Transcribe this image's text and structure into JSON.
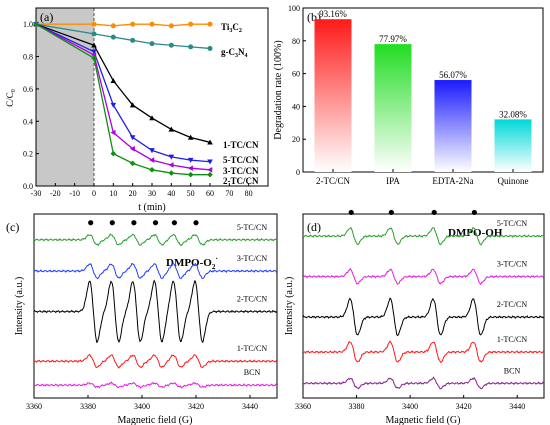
{
  "chart_data": [
    {
      "panel": "(a)",
      "type": "line",
      "xlabel": "t (min)",
      "ylabel": "C/C",
      "ylabel_sub": "0",
      "xlim": [
        -30,
        90
      ],
      "ylim": [
        0,
        1.1
      ],
      "xticks": [
        -30,
        -20,
        -10,
        0,
        10,
        20,
        30,
        40,
        50,
        60,
        70,
        80
      ],
      "yticks": [
        0.0,
        0.2,
        0.4,
        0.6,
        0.8,
        1.0
      ],
      "dark_region": [
        -30,
        0
      ],
      "series": [
        {
          "name": "Ti3C2",
          "label_main": "Ti",
          "label_s1": "3",
          "label_tail": "C",
          "label_s2": "2",
          "color": "#ff8c00",
          "marker": "circle",
          "x": [
            -30,
            0,
            10,
            20,
            30,
            40,
            50,
            60
          ],
          "y": [
            1.0,
            1.0,
            0.99,
            1.0,
            1.0,
            0.99,
            1.0,
            1.0
          ]
        },
        {
          "name": "g-C3N4",
          "label_main": "g-C",
          "label_s1": "3",
          "label_tail": "N",
          "label_s2": "4",
          "color": "#2a8a8a",
          "marker": "circle",
          "x": [
            -30,
            0,
            10,
            20,
            30,
            40,
            50,
            60
          ],
          "y": [
            1.0,
            0.94,
            0.92,
            0.9,
            0.88,
            0.87,
            0.86,
            0.85
          ]
        },
        {
          "name": "1-TC/CN",
          "color": "#000000",
          "marker": "triangle-up",
          "x": [
            -30,
            0,
            10,
            20,
            30,
            40,
            50,
            60
          ],
          "y": [
            1.0,
            0.87,
            0.65,
            0.5,
            0.42,
            0.35,
            0.3,
            0.27
          ]
        },
        {
          "name": "5-TC/CN",
          "color": "#1e1ee6",
          "marker": "triangle-down",
          "x": [
            -30,
            0,
            10,
            20,
            30,
            40,
            50,
            60
          ],
          "y": [
            1.0,
            0.83,
            0.5,
            0.3,
            0.22,
            0.18,
            0.16,
            0.15
          ]
        },
        {
          "name": "3-TC/CN",
          "color": "#b000e0",
          "marker": "triangle-left",
          "x": [
            -30,
            0,
            10,
            20,
            30,
            40,
            50,
            60
          ],
          "y": [
            1.0,
            0.81,
            0.33,
            0.23,
            0.16,
            0.13,
            0.11,
            0.1
          ]
        },
        {
          "name": "2-TC/CN",
          "color": "#109010",
          "marker": "diamond",
          "x": [
            -30,
            0,
            10,
            20,
            30,
            40,
            50,
            60
          ],
          "y": [
            1.0,
            0.79,
            0.2,
            0.14,
            0.1,
            0.08,
            0.07,
            0.07
          ]
        }
      ]
    },
    {
      "panel": "(b)",
      "type": "bar",
      "ylabel": "Degradation rate (100%)",
      "ylim": [
        0,
        100
      ],
      "yticks": [
        0,
        20,
        40,
        60,
        80,
        100
      ],
      "categories": [
        "2-TC/CN",
        "IPA",
        "EDTA-2Na",
        "Quinone"
      ],
      "values": [
        93.16,
        77.97,
        56.07,
        32.08
      ],
      "value_labels": [
        "93.16%",
        "77.97%",
        "56.07%",
        "32.08%"
      ],
      "colors": [
        "#ff1a1a",
        "#22dd22",
        "#1a1aff",
        "#00d8d8"
      ]
    },
    {
      "panel": "(c)",
      "type": "line",
      "title": "DMPO-O",
      "title_sub": "2",
      "title_sup": "·",
      "xlabel": "Magnetic field (G)",
      "ylabel": "Intensity (a.u.)",
      "xlim": [
        3360,
        3450
      ],
      "xticks": [
        3360,
        3380,
        3400,
        3420,
        3440
      ],
      "peaks": [
        3382,
        3390,
        3398,
        3406,
        3413,
        3421
      ],
      "series": [
        {
          "name": "5-TC/CN",
          "color": "#2ca02c",
          "baseline": 0.86,
          "amp": 0.05
        },
        {
          "name": "3-TC/CN",
          "color": "#1f3fff",
          "baseline": 0.69,
          "amp": 0.07
        },
        {
          "name": "2-TC/CN",
          "color": "#000000",
          "baseline": 0.47,
          "amp": 0.3
        },
        {
          "name": "1-TC/CN",
          "color": "#ff1a1a",
          "baseline": 0.2,
          "amp": 0.06
        },
        {
          "name": "BCN",
          "color": "#e020e0",
          "baseline": 0.07,
          "amp": 0.02
        }
      ]
    },
    {
      "panel": "(d)",
      "type": "line",
      "title": "DMPO-OH",
      "xlabel": "Magnetic field (G)",
      "ylabel": "Intensity (a.u.)",
      "xlim": [
        3360,
        3450
      ],
      "xticks": [
        3360,
        3380,
        3400,
        3420,
        3440
      ],
      "peaks": [
        3379,
        3394,
        3410,
        3425
      ],
      "series": [
        {
          "name": "5-TC/CN",
          "color": "#2ca02c",
          "baseline": 0.88,
          "amp": 0.08
        },
        {
          "name": "3-TC/CN",
          "color": "#e020e0",
          "baseline": 0.66,
          "amp": 0.07
        },
        {
          "name": "2-TC/CN",
          "color": "#000000",
          "baseline": 0.44,
          "amp": 0.18
        },
        {
          "name": "1-TC/CN",
          "color": "#ff1a1a",
          "baseline": 0.25,
          "amp": 0.1
        },
        {
          "name": "BCN",
          "color": "#8a2090",
          "baseline": 0.08,
          "amp": 0.05
        }
      ]
    }
  ]
}
